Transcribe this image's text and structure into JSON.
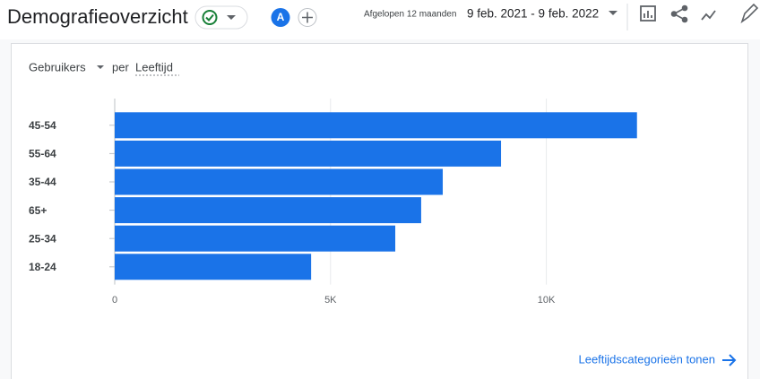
{
  "header": {
    "title": "Demografieoverzicht",
    "avatar": "A",
    "period_label": "Afgelopen 12 maanden",
    "date_range": "9 feb. 2021 - 9 feb. 2022"
  },
  "card": {
    "metric": "Gebruikers",
    "per": "per",
    "dimension": "Leeftijd",
    "link": "Leeftijdscategorieën tonen"
  },
  "chart_data": {
    "type": "bar",
    "orientation": "horizontal",
    "categories": [
      "45-54",
      "55-64",
      "35-44",
      "65+",
      "25-34",
      "18-24"
    ],
    "values": [
      12100,
      8950,
      7600,
      7100,
      6500,
      4550
    ],
    "color": "#1a73e8",
    "xlim": [
      0,
      12500
    ],
    "xticks": [
      0,
      {
        "value": 5000,
        "label": "5K"
      },
      {
        "value": 10000,
        "label": "10K"
      }
    ],
    "grid": true
  }
}
